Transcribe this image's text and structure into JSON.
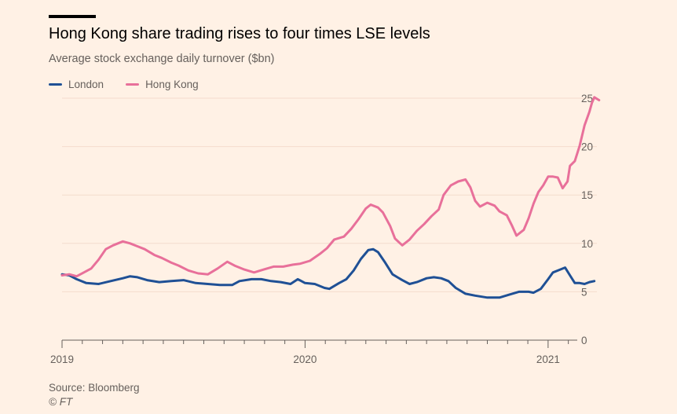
{
  "header": {
    "title": "Hong Kong share trading rises to four times LSE levels",
    "subtitle": "Average stock exchange daily turnover ($bn)"
  },
  "footer": {
    "source": "Source: Bloomberg",
    "copyright": "© FT"
  },
  "colors": {
    "background": "#fff1e5",
    "london": "#1f5095",
    "hongkong": "#e8709a",
    "grid": "#f4dccd",
    "axis": "#66605c"
  },
  "chart_data": {
    "type": "line",
    "title": "Hong Kong share trading rises to four times LSE levels",
    "subtitle": "Average stock exchange daily turnover ($bn)",
    "xlabel": "",
    "ylabel": "",
    "unit": "$bn",
    "grid": true,
    "legend_placement": "top-left",
    "ylim": [
      0,
      25
    ],
    "xlim": [
      2019.0,
      2021.12
    ],
    "y_ticks": [
      0,
      5,
      10,
      15,
      20,
      25
    ],
    "x_ticks": [
      {
        "value": 2019.0,
        "label": "2019"
      },
      {
        "value": 2020.0,
        "label": "2020"
      },
      {
        "value": 2021.0,
        "label": "2021"
      }
    ],
    "series": [
      {
        "name": "London",
        "color": "#1f5095",
        "points": [
          [
            2019.0,
            6.8
          ],
          [
            2019.03,
            6.7
          ],
          [
            2019.06,
            6.3
          ],
          [
            2019.1,
            5.9
          ],
          [
            2019.15,
            5.8
          ],
          [
            2019.2,
            6.1
          ],
          [
            2019.25,
            6.4
          ],
          [
            2019.28,
            6.6
          ],
          [
            2019.31,
            6.5
          ],
          [
            2019.35,
            6.2
          ],
          [
            2019.4,
            6.0
          ],
          [
            2019.45,
            6.1
          ],
          [
            2019.5,
            6.2
          ],
          [
            2019.55,
            5.9
          ],
          [
            2019.6,
            5.8
          ],
          [
            2019.65,
            5.7
          ],
          [
            2019.7,
            5.7
          ],
          [
            2019.73,
            6.1
          ],
          [
            2019.78,
            6.3
          ],
          [
            2019.82,
            6.3
          ],
          [
            2019.86,
            6.1
          ],
          [
            2019.9,
            6.0
          ],
          [
            2019.94,
            5.8
          ],
          [
            2019.97,
            6.3
          ],
          [
            2020.0,
            5.9
          ],
          [
            2020.04,
            5.8
          ],
          [
            2020.08,
            5.4
          ],
          [
            2020.1,
            5.3
          ],
          [
            2020.14,
            5.9
          ],
          [
            2020.17,
            6.3
          ],
          [
            2020.2,
            7.2
          ],
          [
            2020.23,
            8.4
          ],
          [
            2020.26,
            9.3
          ],
          [
            2020.28,
            9.4
          ],
          [
            2020.3,
            9.1
          ],
          [
            2020.33,
            8.0
          ],
          [
            2020.36,
            6.8
          ],
          [
            2020.4,
            6.2
          ],
          [
            2020.43,
            5.8
          ],
          [
            2020.46,
            6.0
          ],
          [
            2020.5,
            6.4
          ],
          [
            2020.53,
            6.5
          ],
          [
            2020.56,
            6.4
          ],
          [
            2020.59,
            6.1
          ],
          [
            2020.62,
            5.4
          ],
          [
            2020.66,
            4.8
          ],
          [
            2020.7,
            4.6
          ],
          [
            2020.75,
            4.4
          ],
          [
            2020.8,
            4.4
          ],
          [
            2020.84,
            4.7
          ],
          [
            2020.88,
            5.0
          ],
          [
            2020.92,
            5.0
          ],
          [
            2020.94,
            4.9
          ],
          [
            2020.97,
            5.3
          ],
          [
            2021.0,
            6.3
          ],
          [
            2021.02,
            7.0
          ],
          [
            2021.05,
            7.3
          ],
          [
            2021.07,
            7.5
          ],
          [
            2021.09,
            6.7
          ],
          [
            2021.11,
            5.9
          ],
          [
            2021.13,
            5.9
          ],
          [
            2021.15,
            5.8
          ],
          [
            2021.17,
            6.0
          ],
          [
            2021.19,
            6.1
          ]
        ]
      },
      {
        "name": "Hong Kong",
        "color": "#e8709a",
        "points": [
          [
            2019.0,
            6.7
          ],
          [
            2019.03,
            6.8
          ],
          [
            2019.06,
            6.6
          ],
          [
            2019.09,
            7.0
          ],
          [
            2019.12,
            7.4
          ],
          [
            2019.15,
            8.3
          ],
          [
            2019.18,
            9.4
          ],
          [
            2019.21,
            9.8
          ],
          [
            2019.25,
            10.2
          ],
          [
            2019.28,
            10.0
          ],
          [
            2019.31,
            9.7
          ],
          [
            2019.34,
            9.4
          ],
          [
            2019.38,
            8.8
          ],
          [
            2019.41,
            8.5
          ],
          [
            2019.45,
            8.0
          ],
          [
            2019.48,
            7.7
          ],
          [
            2019.52,
            7.2
          ],
          [
            2019.56,
            6.9
          ],
          [
            2019.6,
            6.8
          ],
          [
            2019.64,
            7.4
          ],
          [
            2019.68,
            8.1
          ],
          [
            2019.71,
            7.7
          ],
          [
            2019.75,
            7.3
          ],
          [
            2019.79,
            7.0
          ],
          [
            2019.83,
            7.3
          ],
          [
            2019.87,
            7.6
          ],
          [
            2019.91,
            7.6
          ],
          [
            2019.95,
            7.8
          ],
          [
            2019.98,
            7.9
          ],
          [
            2020.02,
            8.2
          ],
          [
            2020.06,
            8.9
          ],
          [
            2020.09,
            9.5
          ],
          [
            2020.12,
            10.4
          ],
          [
            2020.16,
            10.7
          ],
          [
            2020.19,
            11.5
          ],
          [
            2020.22,
            12.5
          ],
          [
            2020.25,
            13.6
          ],
          [
            2020.27,
            14.0
          ],
          [
            2020.3,
            13.7
          ],
          [
            2020.32,
            13.2
          ],
          [
            2020.35,
            11.8
          ],
          [
            2020.37,
            10.5
          ],
          [
            2020.4,
            9.8
          ],
          [
            2020.43,
            10.4
          ],
          [
            2020.46,
            11.3
          ],
          [
            2020.49,
            12.0
          ],
          [
            2020.52,
            12.8
          ],
          [
            2020.55,
            13.5
          ],
          [
            2020.57,
            15.0
          ],
          [
            2020.6,
            16.0
          ],
          [
            2020.63,
            16.4
          ],
          [
            2020.66,
            16.6
          ],
          [
            2020.68,
            15.8
          ],
          [
            2020.7,
            14.4
          ],
          [
            2020.72,
            13.8
          ],
          [
            2020.75,
            14.2
          ],
          [
            2020.78,
            13.9
          ],
          [
            2020.8,
            13.3
          ],
          [
            2020.83,
            12.9
          ],
          [
            2020.85,
            11.9
          ],
          [
            2020.87,
            10.8
          ],
          [
            2020.9,
            11.4
          ],
          [
            2020.92,
            12.6
          ],
          [
            2020.94,
            14.1
          ],
          [
            2020.96,
            15.3
          ],
          [
            2020.98,
            16.0
          ],
          [
            2021.0,
            16.9
          ],
          [
            2021.02,
            16.9
          ],
          [
            2021.04,
            16.8
          ],
          [
            2021.06,
            15.7
          ],
          [
            2021.08,
            16.4
          ],
          [
            2021.09,
            18.0
          ],
          [
            2021.11,
            18.5
          ],
          [
            2021.13,
            20.1
          ],
          [
            2021.15,
            22.2
          ],
          [
            2021.17,
            23.6
          ],
          [
            2021.18,
            24.5
          ],
          [
            2021.19,
            25.1
          ],
          [
            2021.21,
            24.8
          ]
        ]
      }
    ]
  }
}
